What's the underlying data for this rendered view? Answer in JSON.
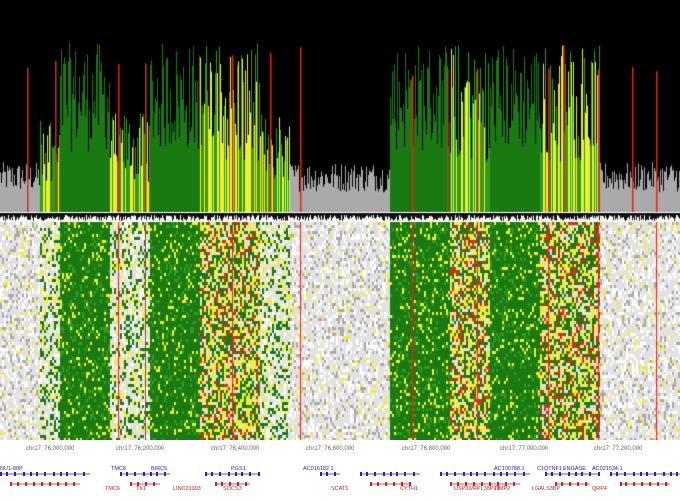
{
  "colors": {
    "background_top": "#000000",
    "green": "#1a7a12",
    "bright_green": "#2f9c1e",
    "yellow": "#f2ef2a",
    "red": "#e0281c",
    "gray": "#aaaaaa",
    "light_gray": "#e2e2e2",
    "plus_strand": "#2222cc",
    "minus_strand": "#cc2222"
  },
  "axis": {
    "ticks": [
      {
        "label": "chr17: 76,000,000",
        "pos": 0.068
      },
      {
        "label": "chr17: 76,200,000",
        "pos": 0.2
      },
      {
        "label": "chr17: 76,400,000",
        "pos": 0.34
      },
      {
        "label": "chr17: 76,600,000",
        "pos": 0.48
      },
      {
        "label": "chr17: 76,800,000",
        "pos": 0.62
      },
      {
        "label": "chr17: 77,000,000",
        "pos": 0.765
      },
      {
        "label": "chr17: 77,200,000",
        "pos": 0.903
      }
    ]
  },
  "genes": {
    "plus": [
      {
        "label": "NU1-80P",
        "pos": 0.0
      },
      {
        "label": "TMC8",
        "pos": 0.163
      },
      {
        "label": "BIRC5",
        "pos": 0.222
      },
      {
        "label": "PGS1",
        "pos": 0.34
      },
      {
        "label": "AC016182.1",
        "pos": 0.445
      },
      {
        "label": "AC100788.1",
        "pos": 0.727
      },
      {
        "label": "C1QTNF1",
        "pos": 0.79
      },
      {
        "label": "ENGASE",
        "pos": 0.828
      },
      {
        "label": "AC021534.1",
        "pos": 0.87
      }
    ],
    "minus": [
      {
        "label": "TMC6",
        "pos": 0.154
      },
      {
        "label": "TK1",
        "pos": 0.2
      },
      {
        "label": "LINC01993",
        "pos": 0.255
      },
      {
        "label": "SOCS3",
        "pos": 0.328
      },
      {
        "label": "SCAT1",
        "pos": 0.487
      },
      {
        "label": "CYTH1",
        "pos": 0.588
      },
      {
        "label": "USP36/RPL38P29",
        "pos": 0.668
      },
      {
        "label": "TIMP2",
        "pos": 0.727
      },
      {
        "label": "LGALS3BP",
        "pos": 0.783
      },
      {
        "label": "QRP4",
        "pos": 0.87
      }
    ]
  }
}
